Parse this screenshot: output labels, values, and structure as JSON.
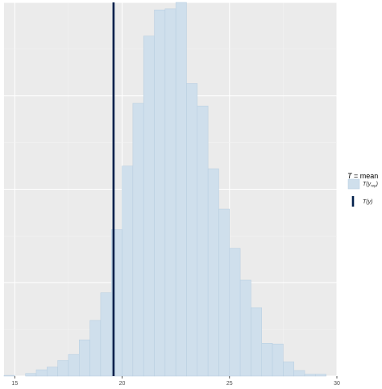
{
  "chart_data": {
    "type": "bar",
    "title": "",
    "xlabel": "",
    "ylabel": "",
    "xlim": [
      14.5,
      30.0
    ],
    "ylim": [
      0,
      1.0
    ],
    "grid": true,
    "legend_placement": "right",
    "x_ticks": [
      {
        "value": 15,
        "label": "15"
      },
      {
        "value": 20,
        "label": "20"
      },
      {
        "value": 25,
        "label": "25"
      },
      {
        "value": 30,
        "label": "30"
      }
    ],
    "bins": {
      "width": 0.5,
      "starts": [
        14.5,
        15.0,
        15.5,
        16.0,
        16.5,
        17.0,
        17.5,
        18.0,
        18.5,
        19.0,
        19.5,
        20.0,
        20.5,
        21.0,
        21.5,
        22.0,
        22.5,
        23.0,
        23.5,
        24.0,
        24.5,
        25.0,
        25.5,
        26.0,
        26.5,
        27.0,
        27.5,
        28.0,
        28.5,
        29.0
      ],
      "values": [
        0.002,
        0.0,
        0.007,
        0.017,
        0.024,
        0.042,
        0.058,
        0.097,
        0.149,
        0.223,
        0.392,
        0.562,
        0.73,
        0.91,
        0.98,
        0.983,
        1.0,
        0.783,
        0.723,
        0.555,
        0.447,
        0.342,
        0.257,
        0.183,
        0.088,
        0.086,
        0.038,
        0.015,
        0.005,
        0.005
      ]
    },
    "series": [
      {
        "name": "T(y_rep)",
        "fill": "#cfdfec",
        "stroke": "#b6cde0"
      }
    ],
    "observed": {
      "name": "T(y)",
      "value": 19.6,
      "color": "#011f4b"
    },
    "legend": {
      "title_T": "T",
      "title_rest": " = mean",
      "rep_main": "T(y",
      "rep_sub": "rep",
      "rep_close": ")",
      "obs_label": "T(y)"
    }
  },
  "colors": {
    "panel_background": "#ebebeb",
    "grid_major": "#ffffff",
    "grid_minor": "#f4f4f4"
  }
}
